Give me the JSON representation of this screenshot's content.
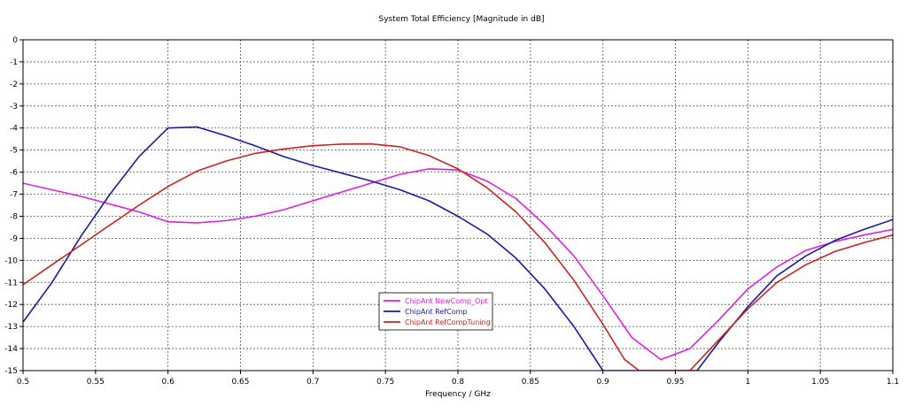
{
  "chart_data": {
    "type": "line",
    "title": "System Total Efficiency [Magnitude in dB]",
    "xlabel": "Frequency / GHz",
    "ylabel": "",
    "xlim": [
      0.5,
      1.1
    ],
    "ylim": [
      -15,
      0
    ],
    "x_ticks": [
      "0.5",
      "0.55",
      "0.6",
      "0.65",
      "0.7",
      "0.75",
      "0.8",
      "0.85",
      "0.9",
      "0.95",
      "1",
      "1.05",
      "1.1"
    ],
    "y_ticks": [
      "0",
      "-1",
      "-2",
      "-3",
      "-4",
      "-5",
      "-6",
      "-7",
      "-8",
      "-9",
      "-10",
      "-11",
      "-12",
      "-13",
      "-14",
      "-15"
    ],
    "grid": true,
    "legend_position": "bottom-center",
    "series": [
      {
        "name": "ChipAnt NewComp_Opt",
        "color": "#e020e0",
        "points": [
          [
            0.5,
            -6.5
          ],
          [
            0.54,
            -7.1
          ],
          [
            0.58,
            -7.8
          ],
          [
            0.6,
            -8.25
          ],
          [
            0.62,
            -8.3
          ],
          [
            0.64,
            -8.2
          ],
          [
            0.66,
            -8.0
          ],
          [
            0.68,
            -7.7
          ],
          [
            0.7,
            -7.3
          ],
          [
            0.72,
            -6.9
          ],
          [
            0.74,
            -6.5
          ],
          [
            0.76,
            -6.1
          ],
          [
            0.78,
            -5.85
          ],
          [
            0.8,
            -5.9
          ],
          [
            0.82,
            -6.4
          ],
          [
            0.84,
            -7.2
          ],
          [
            0.86,
            -8.4
          ],
          [
            0.88,
            -9.8
          ],
          [
            0.9,
            -11.6
          ],
          [
            0.92,
            -13.5
          ],
          [
            0.94,
            -14.5
          ],
          [
            0.96,
            -14.0
          ],
          [
            0.98,
            -12.7
          ],
          [
            1.0,
            -11.3
          ],
          [
            1.02,
            -10.3
          ],
          [
            1.04,
            -9.55
          ],
          [
            1.06,
            -9.15
          ],
          [
            1.08,
            -8.85
          ],
          [
            1.1,
            -8.6
          ]
        ]
      },
      {
        "name": "ChipAnt RefComp",
        "color": "#1a1aa8",
        "points": [
          [
            0.5,
            -12.8
          ],
          [
            0.52,
            -11.0
          ],
          [
            0.54,
            -8.9
          ],
          [
            0.56,
            -7.0
          ],
          [
            0.58,
            -5.3
          ],
          [
            0.6,
            -4.0
          ],
          [
            0.62,
            -3.95
          ],
          [
            0.64,
            -4.35
          ],
          [
            0.66,
            -4.8
          ],
          [
            0.68,
            -5.3
          ],
          [
            0.7,
            -5.7
          ],
          [
            0.72,
            -6.05
          ],
          [
            0.74,
            -6.4
          ],
          [
            0.76,
            -6.8
          ],
          [
            0.78,
            -7.3
          ],
          [
            0.8,
            -8.0
          ],
          [
            0.82,
            -8.8
          ],
          [
            0.84,
            -9.9
          ],
          [
            0.86,
            -11.3
          ],
          [
            0.88,
            -13.0
          ],
          [
            0.895,
            -14.5
          ],
          [
            0.9,
            -15.0
          ],
          [
            0.965,
            -15.0
          ],
          [
            0.98,
            -13.7
          ],
          [
            1.0,
            -12.1
          ],
          [
            1.02,
            -10.7
          ],
          [
            1.04,
            -9.8
          ],
          [
            1.06,
            -9.1
          ],
          [
            1.08,
            -8.6
          ],
          [
            1.1,
            -8.15
          ]
        ]
      },
      {
        "name": "ChipAnt RefCompTuning",
        "color": "#cc2222",
        "points": [
          [
            0.5,
            -11.1
          ],
          [
            0.52,
            -10.2
          ],
          [
            0.54,
            -9.3
          ],
          [
            0.56,
            -8.4
          ],
          [
            0.58,
            -7.5
          ],
          [
            0.6,
            -6.65
          ],
          [
            0.62,
            -5.95
          ],
          [
            0.64,
            -5.5
          ],
          [
            0.66,
            -5.15
          ],
          [
            0.68,
            -4.95
          ],
          [
            0.7,
            -4.8
          ],
          [
            0.72,
            -4.73
          ],
          [
            0.74,
            -4.72
          ],
          [
            0.76,
            -4.85
          ],
          [
            0.78,
            -5.25
          ],
          [
            0.8,
            -5.85
          ],
          [
            0.82,
            -6.7
          ],
          [
            0.84,
            -7.8
          ],
          [
            0.86,
            -9.2
          ],
          [
            0.88,
            -10.9
          ],
          [
            0.9,
            -12.9
          ],
          [
            0.915,
            -14.5
          ],
          [
            0.925,
            -15.0
          ],
          [
            0.96,
            -15.0
          ],
          [
            0.98,
            -13.6
          ],
          [
            1.0,
            -12.2
          ],
          [
            1.02,
            -11.0
          ],
          [
            1.04,
            -10.2
          ],
          [
            1.06,
            -9.6
          ],
          [
            1.08,
            -9.2
          ],
          [
            1.1,
            -8.85
          ]
        ]
      }
    ]
  }
}
